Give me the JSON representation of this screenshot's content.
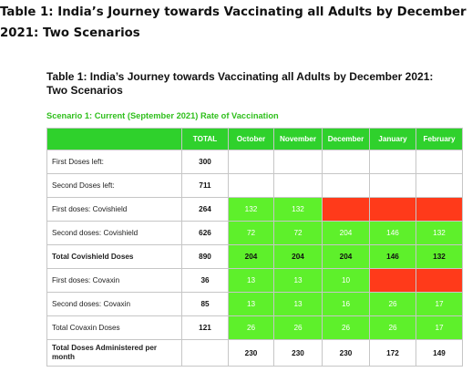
{
  "page_title": "Table 1: India’s Journey towards Vaccinating all Adults by December 2021: Two Scenarios",
  "table_caption": "Table 1: India’s Journey towards Vaccinating all Adults by December 2021: Two Scenarios",
  "scenario_label": "Scenario 1: Current (September 2021)  Rate of Vaccination",
  "colors": {
    "header_green": "#2fd12c",
    "cell_green": "#5ef02b",
    "cell_red": "#ff3a1a",
    "scenario_text": "#2fbf1c"
  },
  "columns": [
    "",
    "TOTAL",
    "October",
    "November",
    "December",
    "January",
    "February"
  ],
  "rows": [
    {
      "label": "First Doses left:",
      "total": "300",
      "cells": [
        {
          "v": "",
          "c": "w"
        },
        {
          "v": "",
          "c": "w"
        },
        {
          "v": "",
          "c": "w"
        },
        {
          "v": "",
          "c": "w"
        },
        {
          "v": "",
          "c": "w"
        }
      ]
    },
    {
      "label": "Second Doses left:",
      "total": "711",
      "cells": [
        {
          "v": "",
          "c": "w"
        },
        {
          "v": "",
          "c": "w"
        },
        {
          "v": "",
          "c": "w"
        },
        {
          "v": "",
          "c": "w"
        },
        {
          "v": "",
          "c": "w"
        }
      ]
    },
    {
      "label": "First doses: Covishield",
      "total": "264",
      "cells": [
        {
          "v": "132",
          "c": "g"
        },
        {
          "v": "132",
          "c": "g"
        },
        {
          "v": "",
          "c": "r"
        },
        {
          "v": "",
          "c": "r"
        },
        {
          "v": "",
          "c": "r"
        }
      ]
    },
    {
      "label": "Second doses: Covishield",
      "total": "626",
      "cells": [
        {
          "v": "72",
          "c": "g"
        },
        {
          "v": "72",
          "c": "g"
        },
        {
          "v": "204",
          "c": "g"
        },
        {
          "v": "146",
          "c": "g"
        },
        {
          "v": "132",
          "c": "g"
        }
      ]
    },
    {
      "label": "Total Covishield Doses",
      "total": "890",
      "bold": true,
      "cells": [
        {
          "v": "204",
          "c": "g"
        },
        {
          "v": "204",
          "c": "g"
        },
        {
          "v": "204",
          "c": "g"
        },
        {
          "v": "146",
          "c": "g"
        },
        {
          "v": "132",
          "c": "g"
        }
      ]
    },
    {
      "label": "First doses: Covaxin",
      "total": "36",
      "cells": [
        {
          "v": "13",
          "c": "g"
        },
        {
          "v": "13",
          "c": "g"
        },
        {
          "v": "10",
          "c": "g"
        },
        {
          "v": "",
          "c": "r"
        },
        {
          "v": "",
          "c": "r"
        }
      ]
    },
    {
      "label": "Second doses: Covaxin",
      "total": "85",
      "cells": [
        {
          "v": "13",
          "c": "g"
        },
        {
          "v": "13",
          "c": "g"
        },
        {
          "v": "16",
          "c": "g"
        },
        {
          "v": "26",
          "c": "g"
        },
        {
          "v": "17",
          "c": "g"
        }
      ]
    },
    {
      "label": "Total Covaxin Doses",
      "total": "121",
      "cells": [
        {
          "v": "26",
          "c": "g"
        },
        {
          "v": "26",
          "c": "g"
        },
        {
          "v": "26",
          "c": "g"
        },
        {
          "v": "26",
          "c": "g"
        },
        {
          "v": "17",
          "c": "g"
        }
      ]
    },
    {
      "label": "Total Doses Administered  per month",
      "total": "",
      "bold": true,
      "last": true,
      "cells": [
        {
          "v": "230",
          "c": "w"
        },
        {
          "v": "230",
          "c": "w"
        },
        {
          "v": "230",
          "c": "w"
        },
        {
          "v": "172",
          "c": "w"
        },
        {
          "v": "149",
          "c": "w"
        }
      ]
    }
  ]
}
